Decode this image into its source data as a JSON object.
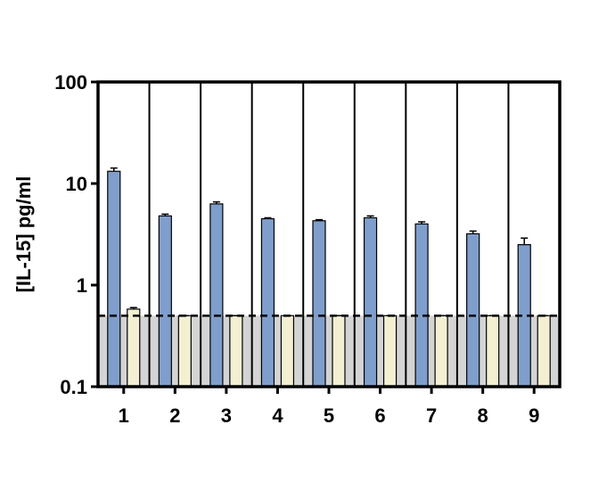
{
  "chart_data": {
    "type": "bar",
    "ylabel": "[IL-15] pg/ml",
    "log_scale": true,
    "categories": [
      "1",
      "2",
      "3",
      "4",
      "5",
      "6",
      "7",
      "8",
      "9"
    ],
    "series": [
      {
        "color": "#7f9ecb",
        "values": [
          13.2,
          4.8,
          6.3,
          4.5,
          4.3,
          4.6,
          4.0,
          3.2,
          2.5
        ],
        "errors": [
          1.0,
          0.2,
          0.3,
          0.1,
          0.1,
          0.2,
          0.2,
          0.2,
          0.4
        ]
      },
      {
        "color": "#f3efd3",
        "values": [
          0.58,
          0.5,
          0.5,
          0.5,
          0.5,
          0.5,
          0.5,
          0.5,
          0.5
        ],
        "errors": [
          0.02,
          0,
          0,
          0,
          0,
          0,
          0,
          0,
          0
        ]
      }
    ],
    "threshold": 0.5,
    "threshold_color": "#d4d4d4",
    "ylim": [
      0.1,
      100
    ],
    "yticks": [
      0.1,
      1,
      10,
      100
    ]
  }
}
